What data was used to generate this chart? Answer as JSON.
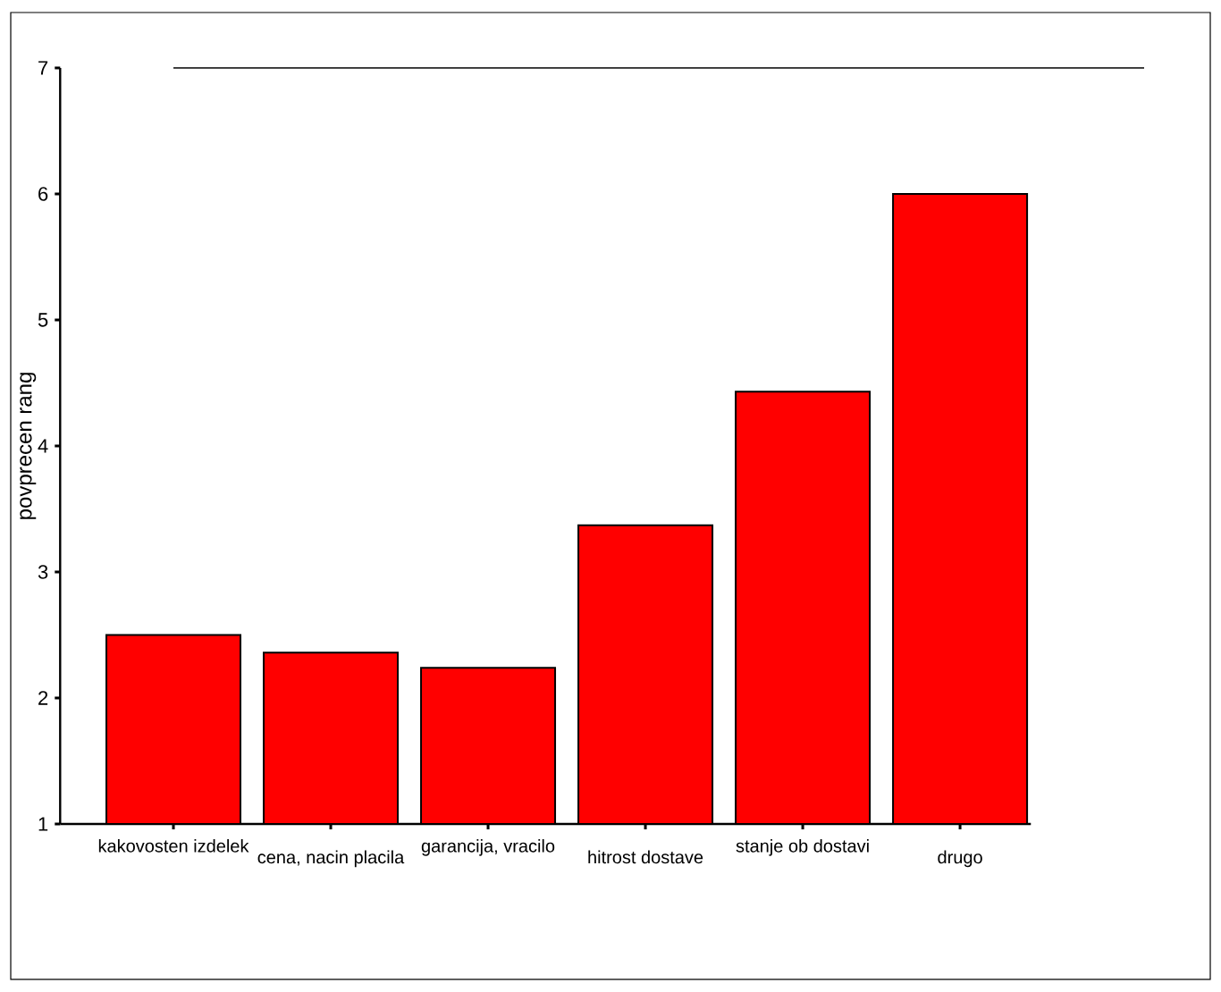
{
  "chart_data": {
    "type": "bar",
    "ylabel": "povprecen rang",
    "categories": [
      "kakovosten izdelek",
      "cena, nacin placila",
      "garancija, vracilo",
      "hitrost dostave",
      "stanje ob dostavi",
      "drugo"
    ],
    "values": [
      2.5,
      2.36,
      2.24,
      3.37,
      4.43,
      6.0
    ],
    "color": "#ff0000",
    "ylim": [
      1,
      7
    ],
    "yticks": [
      1,
      2,
      3,
      4,
      5,
      6,
      7
    ]
  }
}
